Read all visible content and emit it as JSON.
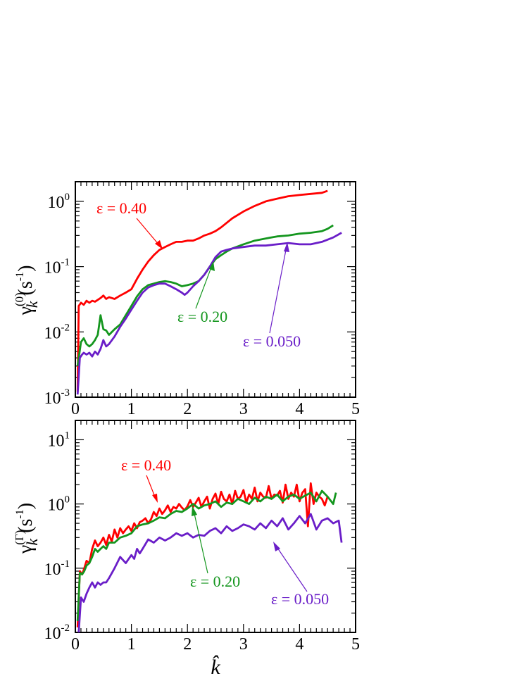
{
  "colors": {
    "eps_040": "#ff0000",
    "eps_020": "#14961e",
    "eps_0050": "#6a1ec8",
    "axes": "#000000"
  },
  "xlabel": "k̂",
  "chart_data": [
    {
      "type": "line",
      "ylabel": {
        "symbol": "γ",
        "superscript": "(0)",
        "subscript": "k",
        "unit": "(s",
        "unit_exp": "-1",
        "unit_close": ")"
      },
      "xlim": [
        0,
        5
      ],
      "ylim": [
        0.001,
        2
      ],
      "yscale": "log",
      "xticks": [
        {
          "value": 0,
          "label": "0"
        },
        {
          "value": 1,
          "label": "1"
        },
        {
          "value": 2,
          "label": "2"
        },
        {
          "value": 3,
          "label": "3"
        },
        {
          "value": 4,
          "label": "4"
        },
        {
          "value": 5,
          "label": "5"
        }
      ],
      "yticks": [
        {
          "value": 0.001,
          "base": "10",
          "exp": "-3"
        },
        {
          "value": 0.01,
          "base": "10",
          "exp": "-2"
        },
        {
          "value": 0.1,
          "base": "10",
          "exp": "-1"
        },
        {
          "value": 1,
          "base": "10",
          "exp": "0"
        }
      ],
      "series": [
        {
          "name": "ε = 0.40",
          "color": "#ff0000",
          "x": [
            0.04,
            0.06,
            0.1,
            0.15,
            0.2,
            0.25,
            0.3,
            0.35,
            0.4,
            0.45,
            0.5,
            0.55,
            0.6,
            0.65,
            0.7,
            0.8,
            0.9,
            1.0,
            1.1,
            1.2,
            1.3,
            1.4,
            1.5,
            1.6,
            1.7,
            1.8,
            1.9,
            2.0,
            2.1,
            2.2,
            2.3,
            2.4,
            2.5,
            2.6,
            2.8,
            3.0,
            3.2,
            3.4,
            3.6,
            3.8,
            4.0,
            4.2,
            4.4,
            4.5
          ],
          "y": [
            0.0012,
            0.025,
            0.028,
            0.026,
            0.03,
            0.028,
            0.03,
            0.029,
            0.031,
            0.033,
            0.036,
            0.032,
            0.034,
            0.033,
            0.032,
            0.036,
            0.04,
            0.045,
            0.065,
            0.09,
            0.12,
            0.15,
            0.18,
            0.2,
            0.22,
            0.24,
            0.24,
            0.25,
            0.25,
            0.27,
            0.3,
            0.32,
            0.35,
            0.4,
            0.55,
            0.7,
            0.85,
            1.0,
            1.1,
            1.2,
            1.25,
            1.3,
            1.35,
            1.45
          ]
        },
        {
          "name": "ε = 0.20",
          "color": "#14961e",
          "x": [
            0.04,
            0.1,
            0.15,
            0.2,
            0.25,
            0.3,
            0.35,
            0.4,
            0.45,
            0.5,
            0.55,
            0.6,
            0.7,
            0.8,
            0.9,
            1.0,
            1.1,
            1.2,
            1.3,
            1.4,
            1.5,
            1.6,
            1.7,
            1.8,
            1.9,
            2.0,
            2.1,
            2.2,
            2.3,
            2.4,
            2.5,
            2.6,
            2.7,
            2.8,
            3.0,
            3.2,
            3.4,
            3.6,
            3.8,
            4.0,
            4.2,
            4.4,
            4.5,
            4.6
          ],
          "y": [
            0.003,
            0.007,
            0.008,
            0.0065,
            0.006,
            0.0065,
            0.0075,
            0.009,
            0.018,
            0.011,
            0.0105,
            0.009,
            0.011,
            0.013,
            0.018,
            0.025,
            0.035,
            0.045,
            0.052,
            0.055,
            0.058,
            0.06,
            0.058,
            0.055,
            0.05,
            0.052,
            0.055,
            0.06,
            0.075,
            0.1,
            0.13,
            0.15,
            0.17,
            0.19,
            0.22,
            0.25,
            0.27,
            0.29,
            0.3,
            0.32,
            0.33,
            0.35,
            0.38,
            0.43
          ]
        },
        {
          "name": "ε = 0.050",
          "color": "#6a1ec8",
          "x": [
            0.04,
            0.08,
            0.12,
            0.15,
            0.2,
            0.25,
            0.3,
            0.35,
            0.4,
            0.45,
            0.5,
            0.55,
            0.6,
            0.7,
            0.8,
            0.9,
            1.0,
            1.1,
            1.2,
            1.3,
            1.4,
            1.5,
            1.6,
            1.7,
            1.8,
            1.9,
            1.95,
            2.0,
            2.1,
            2.2,
            2.3,
            2.4,
            2.5,
            2.6,
            2.7,
            2.8,
            3.0,
            3.2,
            3.4,
            3.6,
            3.8,
            4.0,
            4.2,
            4.4,
            4.6,
            4.75
          ],
          "y": [
            0.0011,
            0.004,
            0.0045,
            0.0048,
            0.0045,
            0.0048,
            0.0042,
            0.005,
            0.0045,
            0.0055,
            0.0075,
            0.006,
            0.0065,
            0.0085,
            0.012,
            0.016,
            0.022,
            0.03,
            0.04,
            0.048,
            0.052,
            0.055,
            0.055,
            0.05,
            0.045,
            0.04,
            0.037,
            0.04,
            0.05,
            0.06,
            0.075,
            0.1,
            0.14,
            0.17,
            0.18,
            0.19,
            0.2,
            0.21,
            0.21,
            0.22,
            0.23,
            0.22,
            0.22,
            0.24,
            0.28,
            0.33
          ]
        }
      ],
      "annotations": [
        {
          "text": "ε = 0.40",
          "series": 0,
          "arrow_x": 1.55,
          "arrow_y": 0.19
        },
        {
          "text": "ε = 0.20",
          "series": 1,
          "arrow_x": 2.45,
          "arrow_y": 0.12
        },
        {
          "text": "ε = 0.050",
          "series": 2,
          "arrow_x": 3.8,
          "arrow_y": 0.23
        }
      ]
    },
    {
      "type": "line",
      "ylabel": {
        "symbol": "γ",
        "superscript": "(Γ)",
        "subscript": "k",
        "unit": "(s",
        "unit_exp": "-1",
        "unit_close": ")"
      },
      "xlim": [
        0,
        5
      ],
      "ylim": [
        0.01,
        20
      ],
      "yscale": "log",
      "xticks": [
        {
          "value": 0,
          "label": "0"
        },
        {
          "value": 1,
          "label": "1"
        },
        {
          "value": 2,
          "label": "2"
        },
        {
          "value": 3,
          "label": "3"
        },
        {
          "value": 4,
          "label": "4"
        },
        {
          "value": 5,
          "label": "5"
        }
      ],
      "yticks": [
        {
          "value": 0.01,
          "base": "10",
          "exp": "-2"
        },
        {
          "value": 0.1,
          "base": "10",
          "exp": "-1"
        },
        {
          "value": 1,
          "base": "10",
          "exp": "0"
        },
        {
          "value": 10,
          "base": "10",
          "exp": "1"
        }
      ],
      "series": [
        {
          "name": "ε = 0.40",
          "color": "#ff0000",
          "x": [
            0.04,
            0.08,
            0.12,
            0.16,
            0.2,
            0.25,
            0.3,
            0.35,
            0.4,
            0.45,
            0.5,
            0.55,
            0.6,
            0.65,
            0.7,
            0.75,
            0.8,
            0.85,
            0.9,
            0.95,
            1.0,
            1.05,
            1.1,
            1.15,
            1.2,
            1.25,
            1.3,
            1.35,
            1.4,
            1.45,
            1.5,
            1.55,
            1.6,
            1.65,
            1.7,
            1.75,
            1.8,
            1.85,
            1.9,
            1.95,
            2.0,
            2.05,
            2.1,
            2.15,
            2.2,
            2.25,
            2.3,
            2.35,
            2.4,
            2.45,
            2.5,
            2.55,
            2.6,
            2.65,
            2.7,
            2.75,
            2.8,
            2.85,
            2.9,
            2.95,
            3.0,
            3.05,
            3.1,
            3.15,
            3.2,
            3.25,
            3.3,
            3.35,
            3.4,
            3.45,
            3.5,
            3.55,
            3.6,
            3.65,
            3.7,
            3.75,
            3.8,
            3.85,
            3.9,
            3.95,
            4.0,
            4.05,
            4.1,
            4.15,
            4.2,
            4.25,
            4.3,
            4.35,
            4.4,
            4.45,
            4.5
          ],
          "y": [
            0.012,
            0.09,
            0.08,
            0.1,
            0.13,
            0.12,
            0.2,
            0.27,
            0.22,
            0.25,
            0.3,
            0.23,
            0.33,
            0.26,
            0.4,
            0.3,
            0.42,
            0.35,
            0.4,
            0.45,
            0.38,
            0.5,
            0.42,
            0.52,
            0.55,
            0.6,
            0.5,
            0.58,
            0.75,
            0.65,
            0.85,
            0.7,
            0.8,
            0.95,
            0.75,
            0.9,
            0.85,
            1.0,
            0.88,
            0.8,
            0.92,
            1.15,
            0.9,
            1.05,
            1.25,
            0.9,
            1.1,
            1.3,
            0.85,
            1.2,
            1.45,
            1.0,
            1.55,
            1.2,
            1.1,
            1.4,
            1.0,
            1.6,
            1.2,
            1.3,
            1.65,
            1.05,
            1.4,
            1.2,
            1.8,
            1.1,
            1.5,
            1.3,
            1.25,
            1.9,
            1.2,
            1.4,
            1.35,
            1.6,
            1.05,
            2.0,
            1.2,
            1.5,
            1.3,
            2.0,
            1.1,
            1.5,
            1.7,
            0.45,
            2.1,
            1.0,
            1.5,
            1.3,
            1.2,
            0.95,
            1.3
          ]
        },
        {
          "name": "ε = 0.20",
          "color": "#14961e",
          "x": [
            0.04,
            0.08,
            0.12,
            0.16,
            0.2,
            0.25,
            0.3,
            0.35,
            0.4,
            0.45,
            0.5,
            0.55,
            0.6,
            0.7,
            0.8,
            0.9,
            1.0,
            1.1,
            1.2,
            1.3,
            1.4,
            1.5,
            1.6,
            1.7,
            1.8,
            1.9,
            2.0,
            2.1,
            2.2,
            2.3,
            2.4,
            2.5,
            2.6,
            2.7,
            2.8,
            2.9,
            3.0,
            3.1,
            3.2,
            3.3,
            3.4,
            3.5,
            3.6,
            3.7,
            3.8,
            3.9,
            4.0,
            4.1,
            4.2,
            4.3,
            4.4,
            4.5,
            4.6,
            4.65
          ],
          "y": [
            0.015,
            0.085,
            0.08,
            0.09,
            0.11,
            0.12,
            0.15,
            0.2,
            0.18,
            0.2,
            0.22,
            0.2,
            0.25,
            0.25,
            0.3,
            0.32,
            0.35,
            0.45,
            0.48,
            0.5,
            0.55,
            0.62,
            0.6,
            0.7,
            0.78,
            0.75,
            0.85,
            1.0,
            0.85,
            0.95,
            1.0,
            1.1,
            0.9,
            1.05,
            1.0,
            1.2,
            1.1,
            1.0,
            1.25,
            1.1,
            1.3,
            1.2,
            1.4,
            1.1,
            1.3,
            1.4,
            1.2,
            1.35,
            1.5,
            1.1,
            1.6,
            1.3,
            1.0,
            1.5
          ]
        },
        {
          "name": "ε = 0.050",
          "color": "#6a1ec8",
          "x": [
            0.06,
            0.1,
            0.15,
            0.2,
            0.25,
            0.3,
            0.35,
            0.4,
            0.45,
            0.5,
            0.55,
            0.6,
            0.7,
            0.8,
            0.9,
            1.0,
            1.05,
            1.1,
            1.15,
            1.2,
            1.3,
            1.4,
            1.5,
            1.6,
            1.7,
            1.8,
            1.9,
            2.0,
            2.1,
            2.2,
            2.3,
            2.4,
            2.5,
            2.6,
            2.7,
            2.8,
            2.9,
            3.0,
            3.1,
            3.2,
            3.3,
            3.4,
            3.5,
            3.6,
            3.7,
            3.8,
            3.9,
            4.0,
            4.1,
            4.2,
            4.3,
            4.4,
            4.5,
            4.6,
            4.7,
            4.75
          ],
          "y": [
            0.01,
            0.035,
            0.03,
            0.04,
            0.05,
            0.06,
            0.05,
            0.06,
            0.055,
            0.06,
            0.06,
            0.07,
            0.1,
            0.15,
            0.12,
            0.16,
            0.14,
            0.2,
            0.17,
            0.2,
            0.28,
            0.25,
            0.3,
            0.27,
            0.3,
            0.35,
            0.32,
            0.35,
            0.3,
            0.33,
            0.32,
            0.38,
            0.42,
            0.35,
            0.45,
            0.38,
            0.42,
            0.48,
            0.45,
            0.4,
            0.5,
            0.42,
            0.55,
            0.45,
            0.6,
            0.4,
            0.5,
            0.65,
            0.5,
            0.7,
            0.4,
            0.55,
            0.6,
            0.5,
            0.55,
            0.25
          ]
        }
      ],
      "annotations": [
        {
          "text": "ε = 0.40",
          "series": 0,
          "arrow_x": 1.5,
          "arrow_y": 0.65
        },
        {
          "text": "ε = 0.20",
          "series": 1,
          "arrow_x": 2.3,
          "arrow_y": 0.85
        },
        {
          "text": "ε = 0.050",
          "series": 2,
          "arrow_x": 3.55,
          "arrow_y": 0.5
        }
      ]
    }
  ]
}
